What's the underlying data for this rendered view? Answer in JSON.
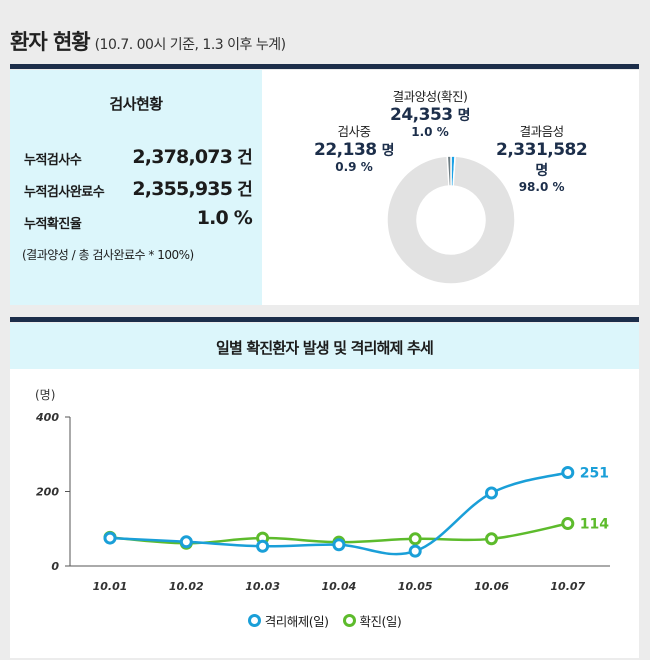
{
  "header": {
    "title": "환자 현황",
    "subtitle": "(10.7. 00시 기준, 1.3 이후 누계)"
  },
  "summary": {
    "title": "검사현황",
    "rows": [
      {
        "label": "누적검사수",
        "value": "2,378,073",
        "unit": "건"
      },
      {
        "label": "누적검사완료수",
        "value": "2,355,935",
        "unit": "건"
      },
      {
        "label": "누적확진율",
        "value": "1.0 %",
        "unit": ""
      }
    ],
    "note": "(결과양성 / 총 검사완료수 * 100%)"
  },
  "donut": {
    "positive": {
      "name": "결과양성(확진)",
      "count": "24,353",
      "unit": "명",
      "pct": "1.0 %"
    },
    "pending": {
      "name": "검사중",
      "count": "22,138",
      "unit": "명",
      "pct": "0.9 %"
    },
    "negative": {
      "name": "결과음성",
      "count": "2,331,582",
      "unit": "명",
      "pct": "98.0 %"
    },
    "colors": {
      "positive": "#1aa1e6",
      "pending": "#6f7e84",
      "negative": "#e2e2e2"
    }
  },
  "chart_data": [
    {
      "type": "pie",
      "labels": [
        "결과양성(확진)",
        "검사중",
        "결과음성"
      ],
      "values": [
        24353,
        22138,
        2331582
      ],
      "percent": [
        1.0,
        0.9,
        98.0
      ]
    },
    {
      "type": "line",
      "title": "일별 확진환자 발생 및 격리해제 추세",
      "ylabel": "(명)",
      "ylim": [
        0,
        400
      ],
      "yticks": [
        0,
        200,
        400
      ],
      "categories": [
        "10.01",
        "10.02",
        "10.03",
        "10.04",
        "10.05",
        "10.06",
        "10.07"
      ],
      "series": [
        {
          "name": "격리해제(일)",
          "color": "#1a9fd8",
          "values": [
            75,
            65,
            53,
            57,
            40,
            196,
            251
          ]
        },
        {
          "name": "확진(일)",
          "color": "#5dbb2c",
          "values": [
            77,
            61,
            75,
            64,
            73,
            73,
            114
          ]
        }
      ],
      "end_labels": [
        "251",
        "114"
      ],
      "grid": false,
      "legend": "bottom-center"
    }
  ]
}
